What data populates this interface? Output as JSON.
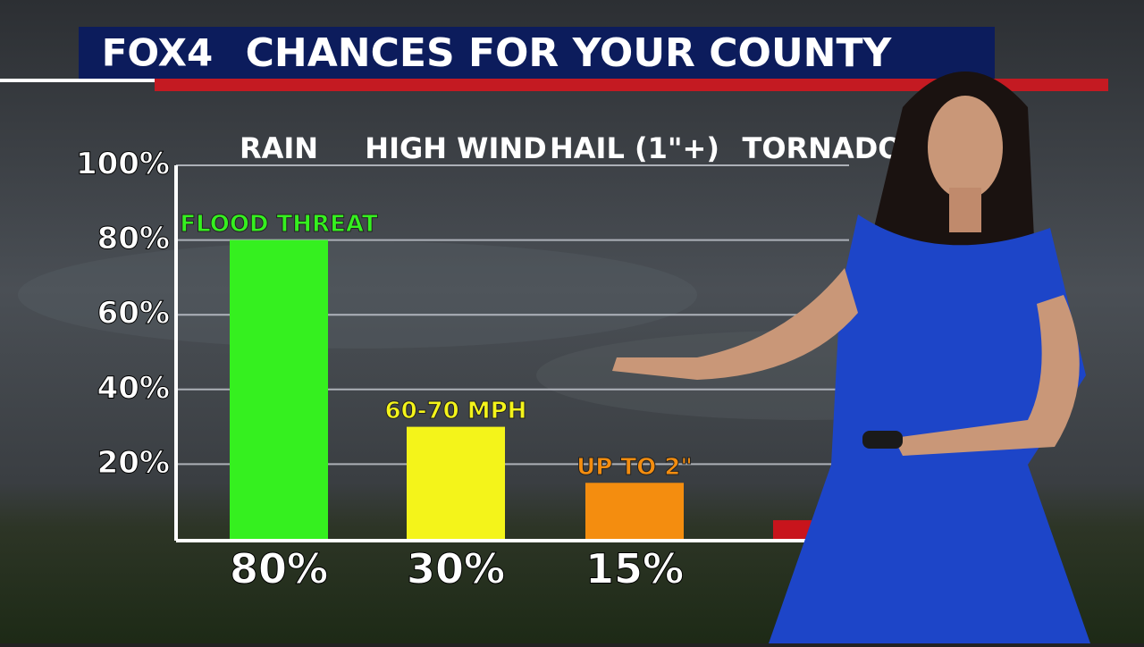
{
  "brand": "FOX4",
  "chart_data": {
    "type": "bar",
    "title": "CHANCES FOR YOUR COUNTY",
    "categories": [
      "RAIN",
      "HIGH WIND",
      "HAIL (1\"+)",
      "TORNADO"
    ],
    "values": [
      80,
      30,
      15,
      5
    ],
    "value_labels": [
      "80%",
      "30%",
      "15%",
      null
    ],
    "annotations": [
      "FLOOD THREAT",
      "60-70 MPH",
      "UP TO 2\"",
      null
    ],
    "colors": [
      "#35f01f",
      "#f4f41a",
      "#f48d0f",
      "#c8141c"
    ],
    "ylim": [
      0,
      100
    ],
    "yticks": [
      {
        "value": 20,
        "label": "20%"
      },
      {
        "value": 40,
        "label": "40%"
      },
      {
        "value": 60,
        "label": "60%"
      },
      {
        "value": 80,
        "label": "80%"
      },
      {
        "value": 100,
        "label": "100%"
      }
    ],
    "grid": true
  }
}
